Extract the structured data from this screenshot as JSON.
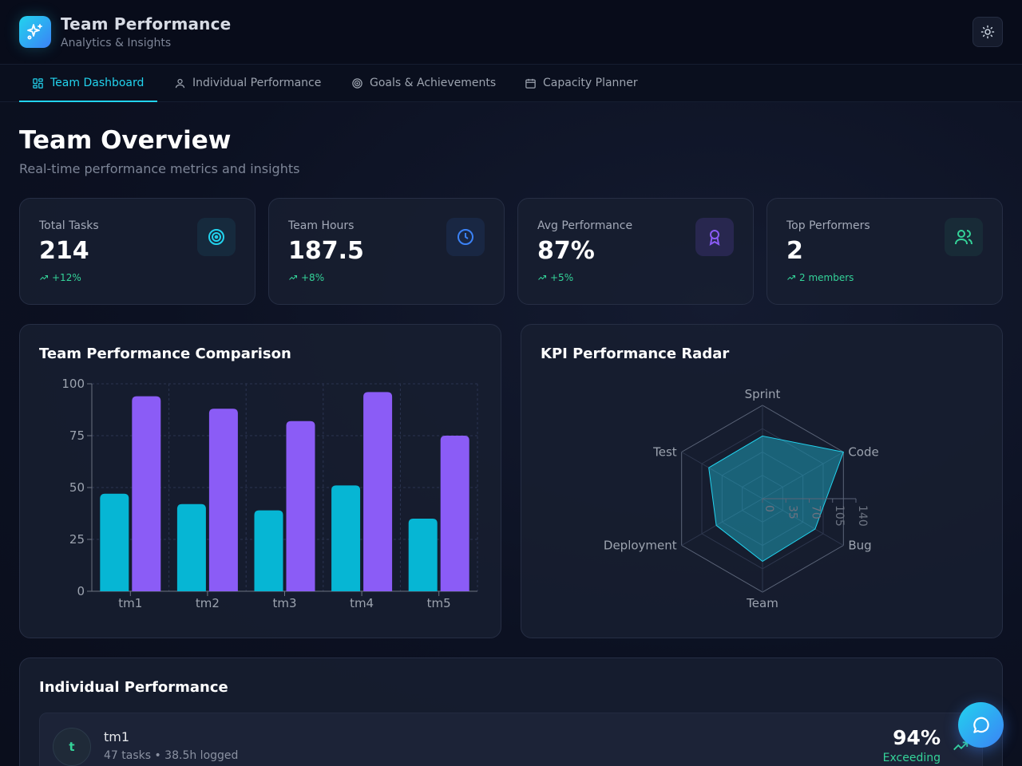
{
  "app": {
    "title": "Team Performance",
    "subtitle": "Analytics & Insights"
  },
  "header": {
    "theme_icon": "sun-icon",
    "logo_icon": "sparkles-icon"
  },
  "tabs": [
    {
      "label": "Team Dashboard",
      "icon": "dashboard-icon",
      "active": true
    },
    {
      "label": "Individual Performance",
      "icon": "user-icon",
      "active": false
    },
    {
      "label": "Goals & Achievements",
      "icon": "target-icon",
      "active": false
    },
    {
      "label": "Capacity Planner",
      "icon": "calendar-icon",
      "active": false
    }
  ],
  "page": {
    "title": "Team Overview",
    "subtitle": "Real-time performance metrics and insights"
  },
  "stats": [
    {
      "label": "Total Tasks",
      "value": "214",
      "trend": "+12%",
      "icon": "target-icon",
      "color": "#22d3ee"
    },
    {
      "label": "Team Hours",
      "value": "187.5",
      "trend": "+8%",
      "icon": "clock-icon",
      "color": "#3b82f6"
    },
    {
      "label": "Avg Performance",
      "value": "87%",
      "trend": "+5%",
      "icon": "award-icon",
      "color": "#8b5cf6"
    },
    {
      "label": "Top Performers",
      "value": "2",
      "trend": "2 members",
      "icon": "users-icon",
      "color": "#34d399"
    }
  ],
  "comparison_panel": {
    "title": "Team Performance Comparison"
  },
  "radar_panel": {
    "title": "KPI Performance Radar"
  },
  "chart_data": [
    {
      "type": "bar",
      "title": "Team Performance Comparison",
      "categories": [
        "tm1",
        "tm2",
        "tm3",
        "tm4",
        "tm5"
      ],
      "series": [
        {
          "values": [
            47,
            42,
            39,
            51,
            35
          ],
          "color": "#06b6d4"
        },
        {
          "values": [
            94,
            88,
            82,
            96,
            75
          ],
          "color": "#8b5cf6"
        }
      ],
      "ylim": [
        0,
        100
      ],
      "yticks": [
        0,
        25,
        50,
        75,
        100
      ],
      "grid": true
    },
    {
      "type": "radar",
      "title": "KPI Performance Radar",
      "axes": [
        "Sprint",
        "Code",
        "Bug",
        "Team",
        "Deployment",
        "Test"
      ],
      "values": [
        94,
        140,
        91,
        94,
        80,
        93
      ],
      "rlim": [
        0,
        140
      ],
      "rticks": [
        0,
        35,
        70,
        105,
        140
      ],
      "color": "#22d3ee"
    }
  ],
  "individual": {
    "title": "Individual Performance",
    "members": [
      {
        "initial": "t",
        "name": "tm1",
        "meta": "47 tasks • 38.5h logged",
        "score": "94%",
        "status": "Exceeding"
      }
    ]
  },
  "chat": {
    "icon": "chat-icon"
  }
}
